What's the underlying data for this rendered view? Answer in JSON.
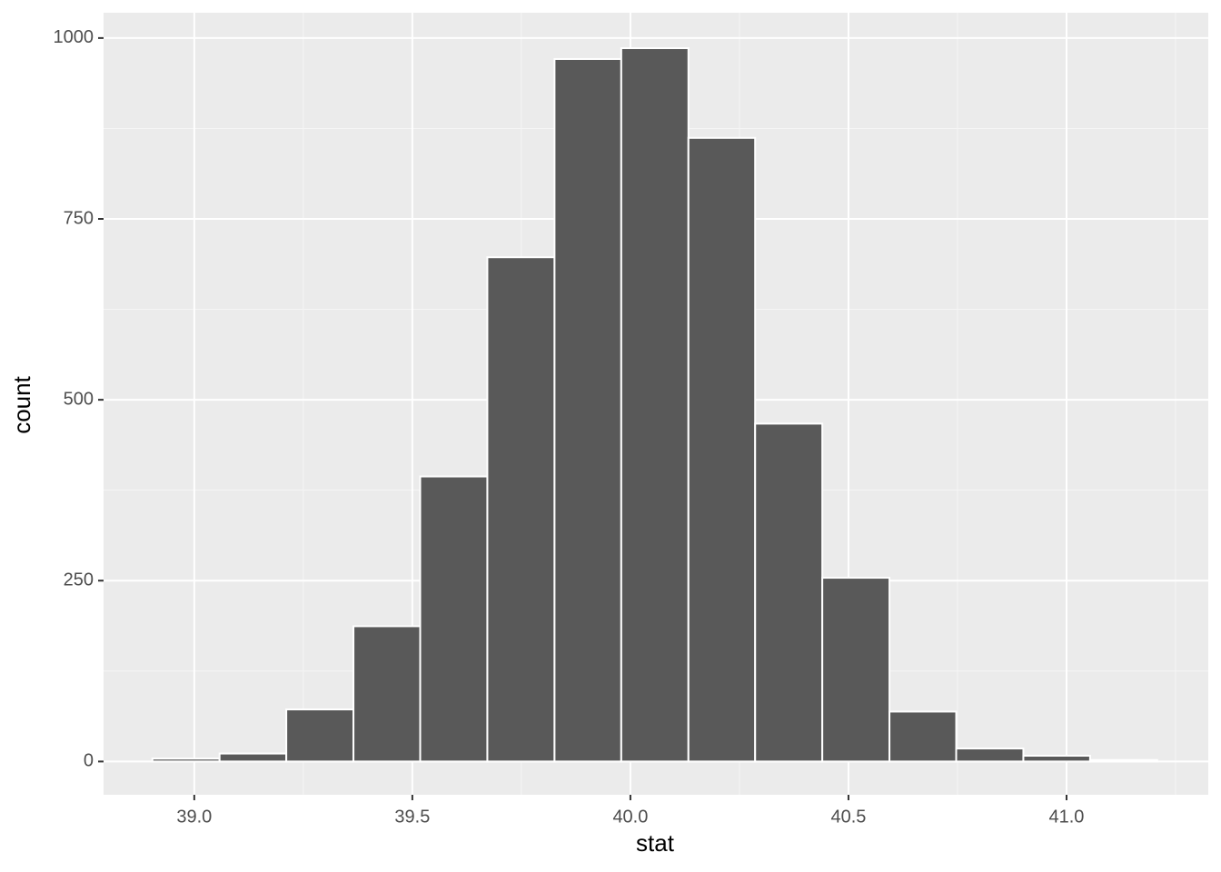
{
  "chart_data": {
    "type": "histogram",
    "x_label": "stat",
    "y_label": "count",
    "bins": [
      38.904,
      39.058,
      39.211,
      39.365,
      39.518,
      39.672,
      39.826,
      39.979,
      40.133,
      40.286,
      40.44,
      40.594,
      40.747,
      40.901,
      41.054,
      41.208
    ],
    "values": [
      4,
      11,
      72,
      187,
      394,
      697,
      971,
      986,
      862,
      467,
      254,
      69,
      18,
      8,
      2
    ],
    "color": "#595959",
    "xlim": [
      38.792,
      41.325
    ],
    "ylim": [
      -46,
      1035
    ],
    "xticks": [
      {
        "value": 39,
        "label": "39.0"
      },
      {
        "value": 39.5,
        "label": "39.5"
      },
      {
        "value": 40,
        "label": "40.0"
      },
      {
        "value": 40.5,
        "label": "40.5"
      },
      {
        "value": 41,
        "label": "41.0"
      }
    ],
    "yticks": [
      0,
      250,
      500,
      750,
      1000
    ],
    "grid": true
  }
}
